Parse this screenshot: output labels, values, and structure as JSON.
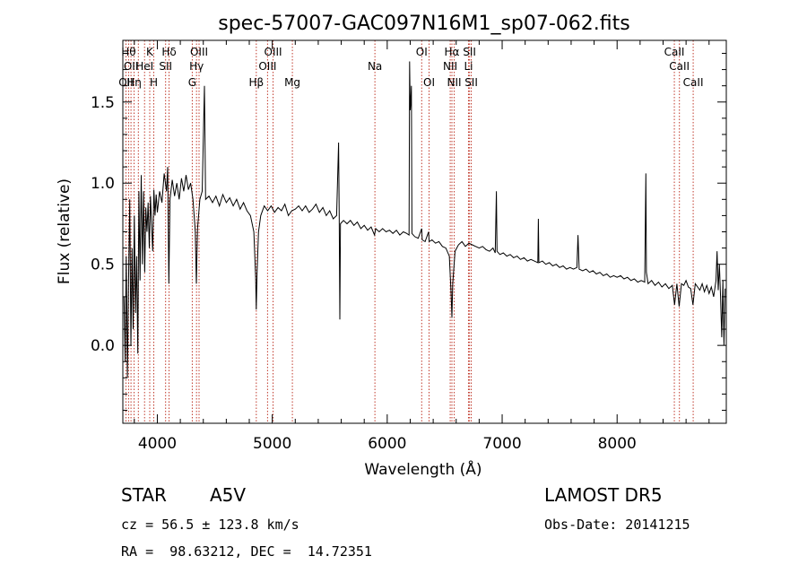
{
  "title": "spec-57007-GAC097N16M1_sp07-062.fits",
  "info": {
    "class_label": "STAR",
    "subclass": "A5V",
    "survey": "LAMOST DR5",
    "redshift_line": "cz = 56.5 ± 123.8 km/s",
    "obs_date_line": "Obs-Date: 20141215",
    "coords_line": "RA =  98.63212, DEC =  14.72351"
  },
  "chart_data": {
    "type": "line",
    "title": "spec-57007-GAC097N16M1_sp07-062.fits",
    "xlabel": "Wavelength (Å)",
    "ylabel": "Flux (relative)",
    "xlim": [
      3700,
      8950
    ],
    "ylim": [
      -0.48,
      1.88
    ],
    "x_ticks": [
      4000,
      5000,
      6000,
      7000,
      8000
    ],
    "y_ticks": [
      0.0,
      0.5,
      1.0,
      1.5
    ],
    "y_tick_labels": [
      "0.0",
      "0.5",
      "1.0",
      "1.5"
    ],
    "line_color": "#000000",
    "marker_line_color": "#c0392b",
    "series": [
      {
        "points": [
          [
            3710,
            0.3
          ],
          [
            3720,
            -0.1
          ],
          [
            3730,
            0.55
          ],
          [
            3740,
            -0.2
          ],
          [
            3750,
            0.4
          ],
          [
            3760,
            0.9
          ],
          [
            3770,
            0.0
          ],
          [
            3780,
            0.6
          ],
          [
            3790,
            0.1
          ],
          [
            3800,
            0.8
          ],
          [
            3810,
            0.2
          ],
          [
            3820,
            0.55
          ],
          [
            3830,
            -0.05
          ],
          [
            3840,
            0.95
          ],
          [
            3850,
            0.4
          ],
          [
            3860,
            1.05
          ],
          [
            3870,
            0.5
          ],
          [
            3880,
            0.95
          ],
          [
            3890,
            0.45
          ],
          [
            3900,
            0.85
          ],
          [
            3910,
            0.7
          ],
          [
            3920,
            0.88
          ],
          [
            3930,
            0.6
          ],
          [
            3940,
            0.92
          ],
          [
            3950,
            0.75
          ],
          [
            3960,
            0.58
          ],
          [
            3970,
            0.96
          ],
          [
            3980,
            0.8
          ],
          [
            3990,
            0.93
          ],
          [
            4000,
            0.82
          ],
          [
            4020,
            0.95
          ],
          [
            4040,
            0.88
          ],
          [
            4060,
            1.06
          ],
          [
            4080,
            0.95
          ],
          [
            4090,
            1.1
          ],
          [
            4100,
            0.38
          ],
          [
            4110,
            0.9
          ],
          [
            4130,
            1.02
          ],
          [
            4150,
            0.92
          ],
          [
            4170,
            1.0
          ],
          [
            4190,
            0.9
          ],
          [
            4210,
            1.03
          ],
          [
            4230,
            0.95
          ],
          [
            4250,
            1.05
          ],
          [
            4270,
            0.96
          ],
          [
            4290,
            1.0
          ],
          [
            4310,
            0.9
          ],
          [
            4330,
            0.7
          ],
          [
            4340,
            0.38
          ],
          [
            4350,
            0.72
          ],
          [
            4370,
            0.9
          ],
          [
            4390,
            0.95
          ],
          [
            4410,
            1.6
          ],
          [
            4420,
            0.9
          ],
          [
            4450,
            0.92
          ],
          [
            4480,
            0.88
          ],
          [
            4510,
            0.92
          ],
          [
            4540,
            0.86
          ],
          [
            4570,
            0.93
          ],
          [
            4600,
            0.88
          ],
          [
            4630,
            0.91
          ],
          [
            4660,
            0.86
          ],
          [
            4690,
            0.9
          ],
          [
            4720,
            0.84
          ],
          [
            4750,
            0.88
          ],
          [
            4780,
            0.83
          ],
          [
            4810,
            0.8
          ],
          [
            4840,
            0.7
          ],
          [
            4855,
            0.42
          ],
          [
            4861,
            0.22
          ],
          [
            4868,
            0.45
          ],
          [
            4880,
            0.7
          ],
          [
            4900,
            0.8
          ],
          [
            4930,
            0.86
          ],
          [
            4960,
            0.83
          ],
          [
            4990,
            0.86
          ],
          [
            5020,
            0.82
          ],
          [
            5050,
            0.85
          ],
          [
            5080,
            0.83
          ],
          [
            5110,
            0.87
          ],
          [
            5140,
            0.8
          ],
          [
            5170,
            0.83
          ],
          [
            5200,
            0.84
          ],
          [
            5230,
            0.86
          ],
          [
            5260,
            0.83
          ],
          [
            5290,
            0.86
          ],
          [
            5320,
            0.82
          ],
          [
            5350,
            0.84
          ],
          [
            5380,
            0.87
          ],
          [
            5410,
            0.82
          ],
          [
            5440,
            0.85
          ],
          [
            5470,
            0.8
          ],
          [
            5500,
            0.83
          ],
          [
            5530,
            0.78
          ],
          [
            5560,
            0.8
          ],
          [
            5577,
            1.25
          ],
          [
            5582,
            0.8
          ],
          [
            5588,
            0.16
          ],
          [
            5593,
            0.75
          ],
          [
            5620,
            0.77
          ],
          [
            5650,
            0.75
          ],
          [
            5680,
            0.77
          ],
          [
            5710,
            0.74
          ],
          [
            5740,
            0.76
          ],
          [
            5770,
            0.72
          ],
          [
            5800,
            0.74
          ],
          [
            5830,
            0.71
          ],
          [
            5860,
            0.73
          ],
          [
            5890,
            0.68
          ],
          [
            5900,
            0.72
          ],
          [
            5930,
            0.7
          ],
          [
            5960,
            0.72
          ],
          [
            5990,
            0.7
          ],
          [
            6020,
            0.71
          ],
          [
            6050,
            0.69
          ],
          [
            6080,
            0.71
          ],
          [
            6110,
            0.68
          ],
          [
            6140,
            0.7
          ],
          [
            6170,
            0.69
          ],
          [
            6190,
            0.68
          ],
          [
            6195,
            1.75
          ],
          [
            6200,
            1.45
          ],
          [
            6205,
            1.5
          ],
          [
            6210,
            1.6
          ],
          [
            6215,
            0.69
          ],
          [
            6240,
            0.67
          ],
          [
            6270,
            0.66
          ],
          [
            6300,
            0.72
          ],
          [
            6305,
            0.65
          ],
          [
            6330,
            0.64
          ],
          [
            6360,
            0.7
          ],
          [
            6365,
            0.64
          ],
          [
            6390,
            0.65
          ],
          [
            6420,
            0.63
          ],
          [
            6450,
            0.64
          ],
          [
            6480,
            0.61
          ],
          [
            6510,
            0.6
          ],
          [
            6540,
            0.55
          ],
          [
            6555,
            0.33
          ],
          [
            6563,
            0.17
          ],
          [
            6570,
            0.38
          ],
          [
            6590,
            0.58
          ],
          [
            6620,
            0.62
          ],
          [
            6650,
            0.64
          ],
          [
            6680,
            0.61
          ],
          [
            6710,
            0.63
          ],
          [
            6740,
            0.62
          ],
          [
            6770,
            0.61
          ],
          [
            6800,
            0.6
          ],
          [
            6830,
            0.61
          ],
          [
            6860,
            0.59
          ],
          [
            6890,
            0.58
          ],
          [
            6920,
            0.6
          ],
          [
            6940,
            0.57
          ],
          [
            6950,
            0.95
          ],
          [
            6955,
            0.58
          ],
          [
            6980,
            0.56
          ],
          [
            7010,
            0.57
          ],
          [
            7040,
            0.55
          ],
          [
            7070,
            0.56
          ],
          [
            7100,
            0.54
          ],
          [
            7130,
            0.55
          ],
          [
            7160,
            0.53
          ],
          [
            7190,
            0.54
          ],
          [
            7220,
            0.52
          ],
          [
            7250,
            0.53
          ],
          [
            7280,
            0.52
          ],
          [
            7310,
            0.51
          ],
          [
            7315,
            0.78
          ],
          [
            7320,
            0.51
          ],
          [
            7350,
            0.52
          ],
          [
            7380,
            0.5
          ],
          [
            7410,
            0.51
          ],
          [
            7440,
            0.49
          ],
          [
            7470,
            0.5
          ],
          [
            7500,
            0.48
          ],
          [
            7530,
            0.49
          ],
          [
            7560,
            0.47
          ],
          [
            7590,
            0.48
          ],
          [
            7620,
            0.47
          ],
          [
            7650,
            0.48
          ],
          [
            7660,
            0.68
          ],
          [
            7670,
            0.47
          ],
          [
            7700,
            0.46
          ],
          [
            7730,
            0.47
          ],
          [
            7760,
            0.45
          ],
          [
            7790,
            0.46
          ],
          [
            7820,
            0.44
          ],
          [
            7850,
            0.45
          ],
          [
            7880,
            0.43
          ],
          [
            7910,
            0.44
          ],
          [
            7940,
            0.42
          ],
          [
            7970,
            0.43
          ],
          [
            8000,
            0.42
          ],
          [
            8030,
            0.43
          ],
          [
            8060,
            0.41
          ],
          [
            8090,
            0.42
          ],
          [
            8120,
            0.4
          ],
          [
            8150,
            0.41
          ],
          [
            8180,
            0.39
          ],
          [
            8210,
            0.4
          ],
          [
            8240,
            0.39
          ],
          [
            8250,
            1.06
          ],
          [
            8255,
            0.45
          ],
          [
            8270,
            0.38
          ],
          [
            8300,
            0.4
          ],
          [
            8330,
            0.37
          ],
          [
            8360,
            0.39
          ],
          [
            8390,
            0.36
          ],
          [
            8420,
            0.38
          ],
          [
            8450,
            0.35
          ],
          [
            8480,
            0.37
          ],
          [
            8500,
            0.25
          ],
          [
            8520,
            0.38
          ],
          [
            8540,
            0.24
          ],
          [
            8560,
            0.38
          ],
          [
            8580,
            0.37
          ],
          [
            8600,
            0.4
          ],
          [
            8620,
            0.36
          ],
          [
            8640,
            0.35
          ],
          [
            8660,
            0.25
          ],
          [
            8680,
            0.38
          ],
          [
            8700,
            0.36
          ],
          [
            8720,
            0.34
          ],
          [
            8740,
            0.38
          ],
          [
            8760,
            0.33
          ],
          [
            8780,
            0.37
          ],
          [
            8800,
            0.32
          ],
          [
            8820,
            0.36
          ],
          [
            8840,
            0.3
          ],
          [
            8860,
            0.4
          ],
          [
            8870,
            0.58
          ],
          [
            8880,
            0.34
          ],
          [
            8890,
            0.5
          ],
          [
            8900,
            0.3
          ],
          [
            8910,
            0.05
          ],
          [
            8920,
            0.4
          ],
          [
            8930,
            0.0
          ],
          [
            8940,
            0.35
          ]
        ]
      }
    ],
    "line_markers": [
      {
        "wl": 3727,
        "label": "OII",
        "row": 3
      },
      {
        "wl": 3750,
        "label": "Hθ",
        "row": 1
      },
      {
        "wl": 3771,
        "label": "OII",
        "row": 2
      },
      {
        "wl": 3798,
        "label": "Hη",
        "row": 3
      },
      {
        "wl": 3835,
        "label": "",
        "row": 0
      },
      {
        "wl": 3889,
        "label": "HeI",
        "row": 2
      },
      {
        "wl": 3934,
        "label": "K",
        "row": 1
      },
      {
        "wl": 3969,
        "label": "H",
        "row": 3
      },
      {
        "wl": 4072,
        "label": "SII",
        "row": 2
      },
      {
        "wl": 4102,
        "label": "Hδ",
        "row": 1
      },
      {
        "wl": 4304,
        "label": "G",
        "row": 3
      },
      {
        "wl": 4341,
        "label": "Hγ",
        "row": 2
      },
      {
        "wl": 4363,
        "label": "OIII",
        "row": 1
      },
      {
        "wl": 4861,
        "label": "Hβ",
        "row": 3
      },
      {
        "wl": 4959,
        "label": "OIII",
        "row": 2
      },
      {
        "wl": 5007,
        "label": "OIII",
        "row": 1
      },
      {
        "wl": 5175,
        "label": "Mg",
        "row": 3
      },
      {
        "wl": 5893,
        "label": "Na",
        "row": 2
      },
      {
        "wl": 6300,
        "label": "OI",
        "row": 1
      },
      {
        "wl": 6364,
        "label": "OI",
        "row": 3
      },
      {
        "wl": 6548,
        "label": "NII",
        "row": 2
      },
      {
        "wl": 6563,
        "label": "Hα",
        "row": 1
      },
      {
        "wl": 6583,
        "label": "NII",
        "row": 3
      },
      {
        "wl": 6707,
        "label": "Li",
        "row": 2
      },
      {
        "wl": 6716,
        "label": "SII",
        "row": 1
      },
      {
        "wl": 6731,
        "label": "SII",
        "row": 3
      },
      {
        "wl": 8498,
        "label": "CaII",
        "row": 1
      },
      {
        "wl": 8542,
        "label": "CaII",
        "row": 2
      },
      {
        "wl": 8662,
        "label": "CaII",
        "row": 3
      }
    ]
  }
}
